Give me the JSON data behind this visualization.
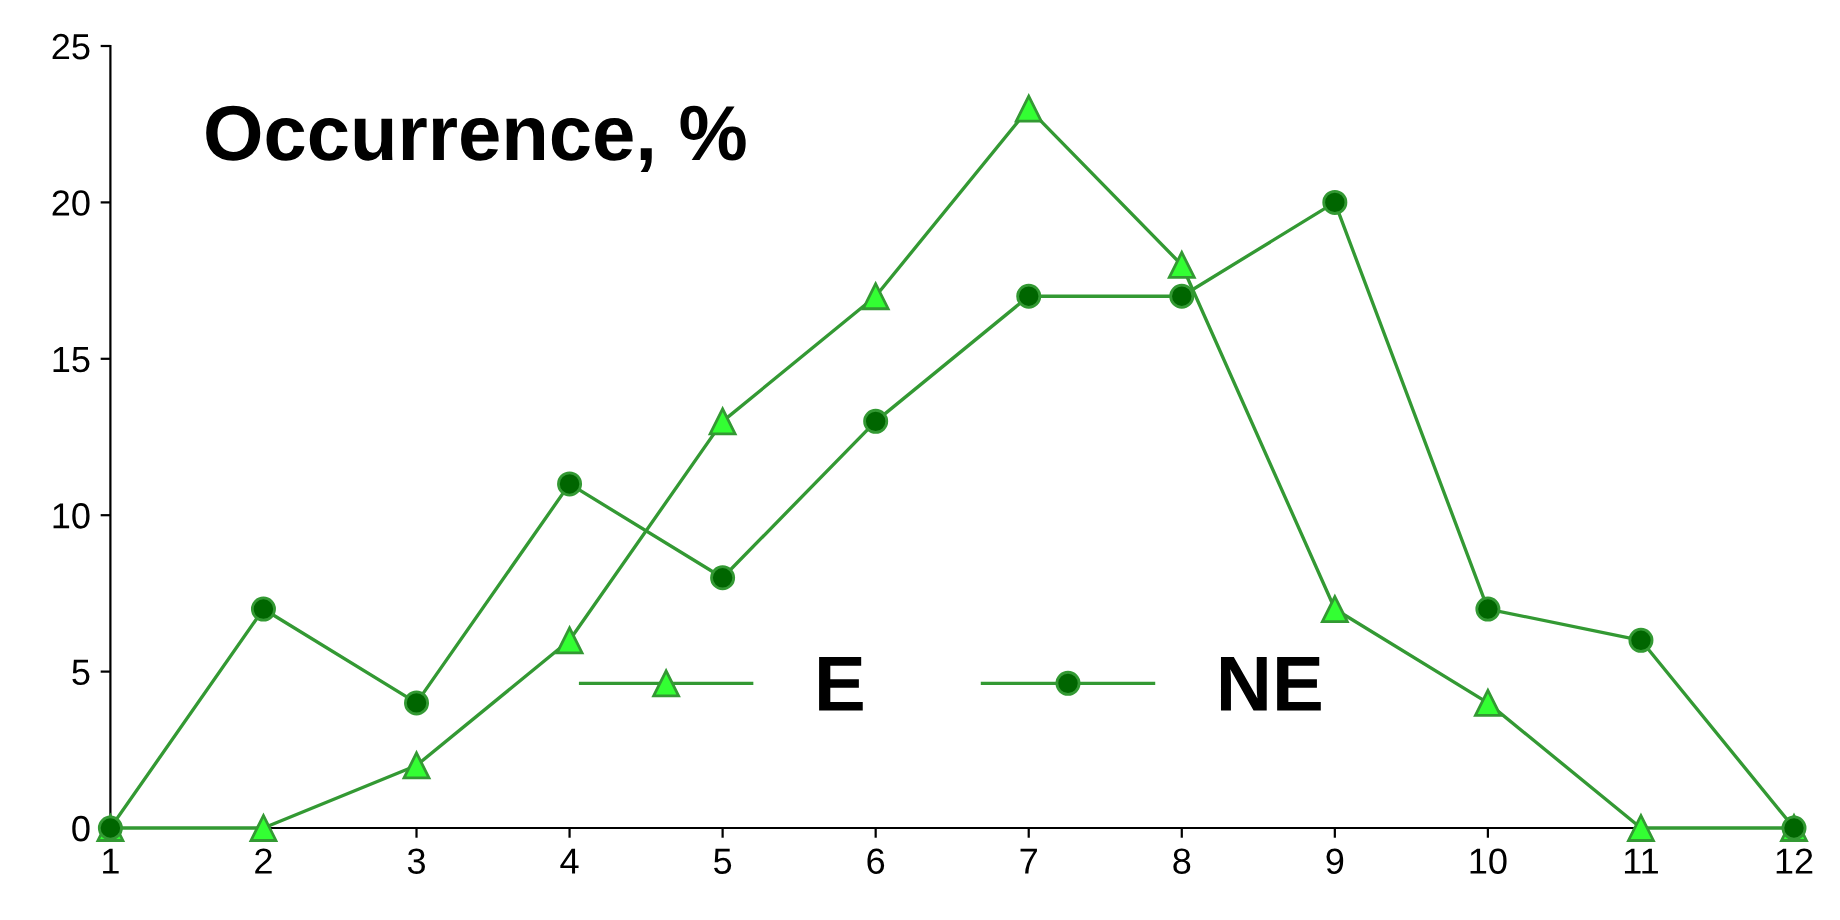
{
  "chart_data": {
    "type": "line",
    "title": "Occurrence, %",
    "x": [
      1,
      2,
      3,
      4,
      5,
      6,
      7,
      8,
      9,
      10,
      11,
      12
    ],
    "series": [
      {
        "name": "E",
        "color": "#33ff33",
        "marker": "triangle",
        "values": [
          0,
          0,
          2,
          6,
          13,
          17,
          23,
          18,
          7,
          4,
          0,
          0
        ]
      },
      {
        "name": "NE",
        "color": "#006600",
        "marker": "circle",
        "values": [
          0,
          7,
          4,
          11,
          8,
          13,
          17,
          17,
          20,
          7,
          6,
          0
        ]
      }
    ],
    "xlim": [
      1,
      12
    ],
    "xticks": [
      1,
      2,
      3,
      4,
      5,
      6,
      7,
      8,
      9,
      10,
      11,
      12
    ],
    "ylim": [
      0,
      25
    ],
    "yticks": [
      0,
      5,
      10,
      15,
      20,
      25
    ],
    "grid": false,
    "legend": "bottom",
    "line_style": "solid"
  }
}
